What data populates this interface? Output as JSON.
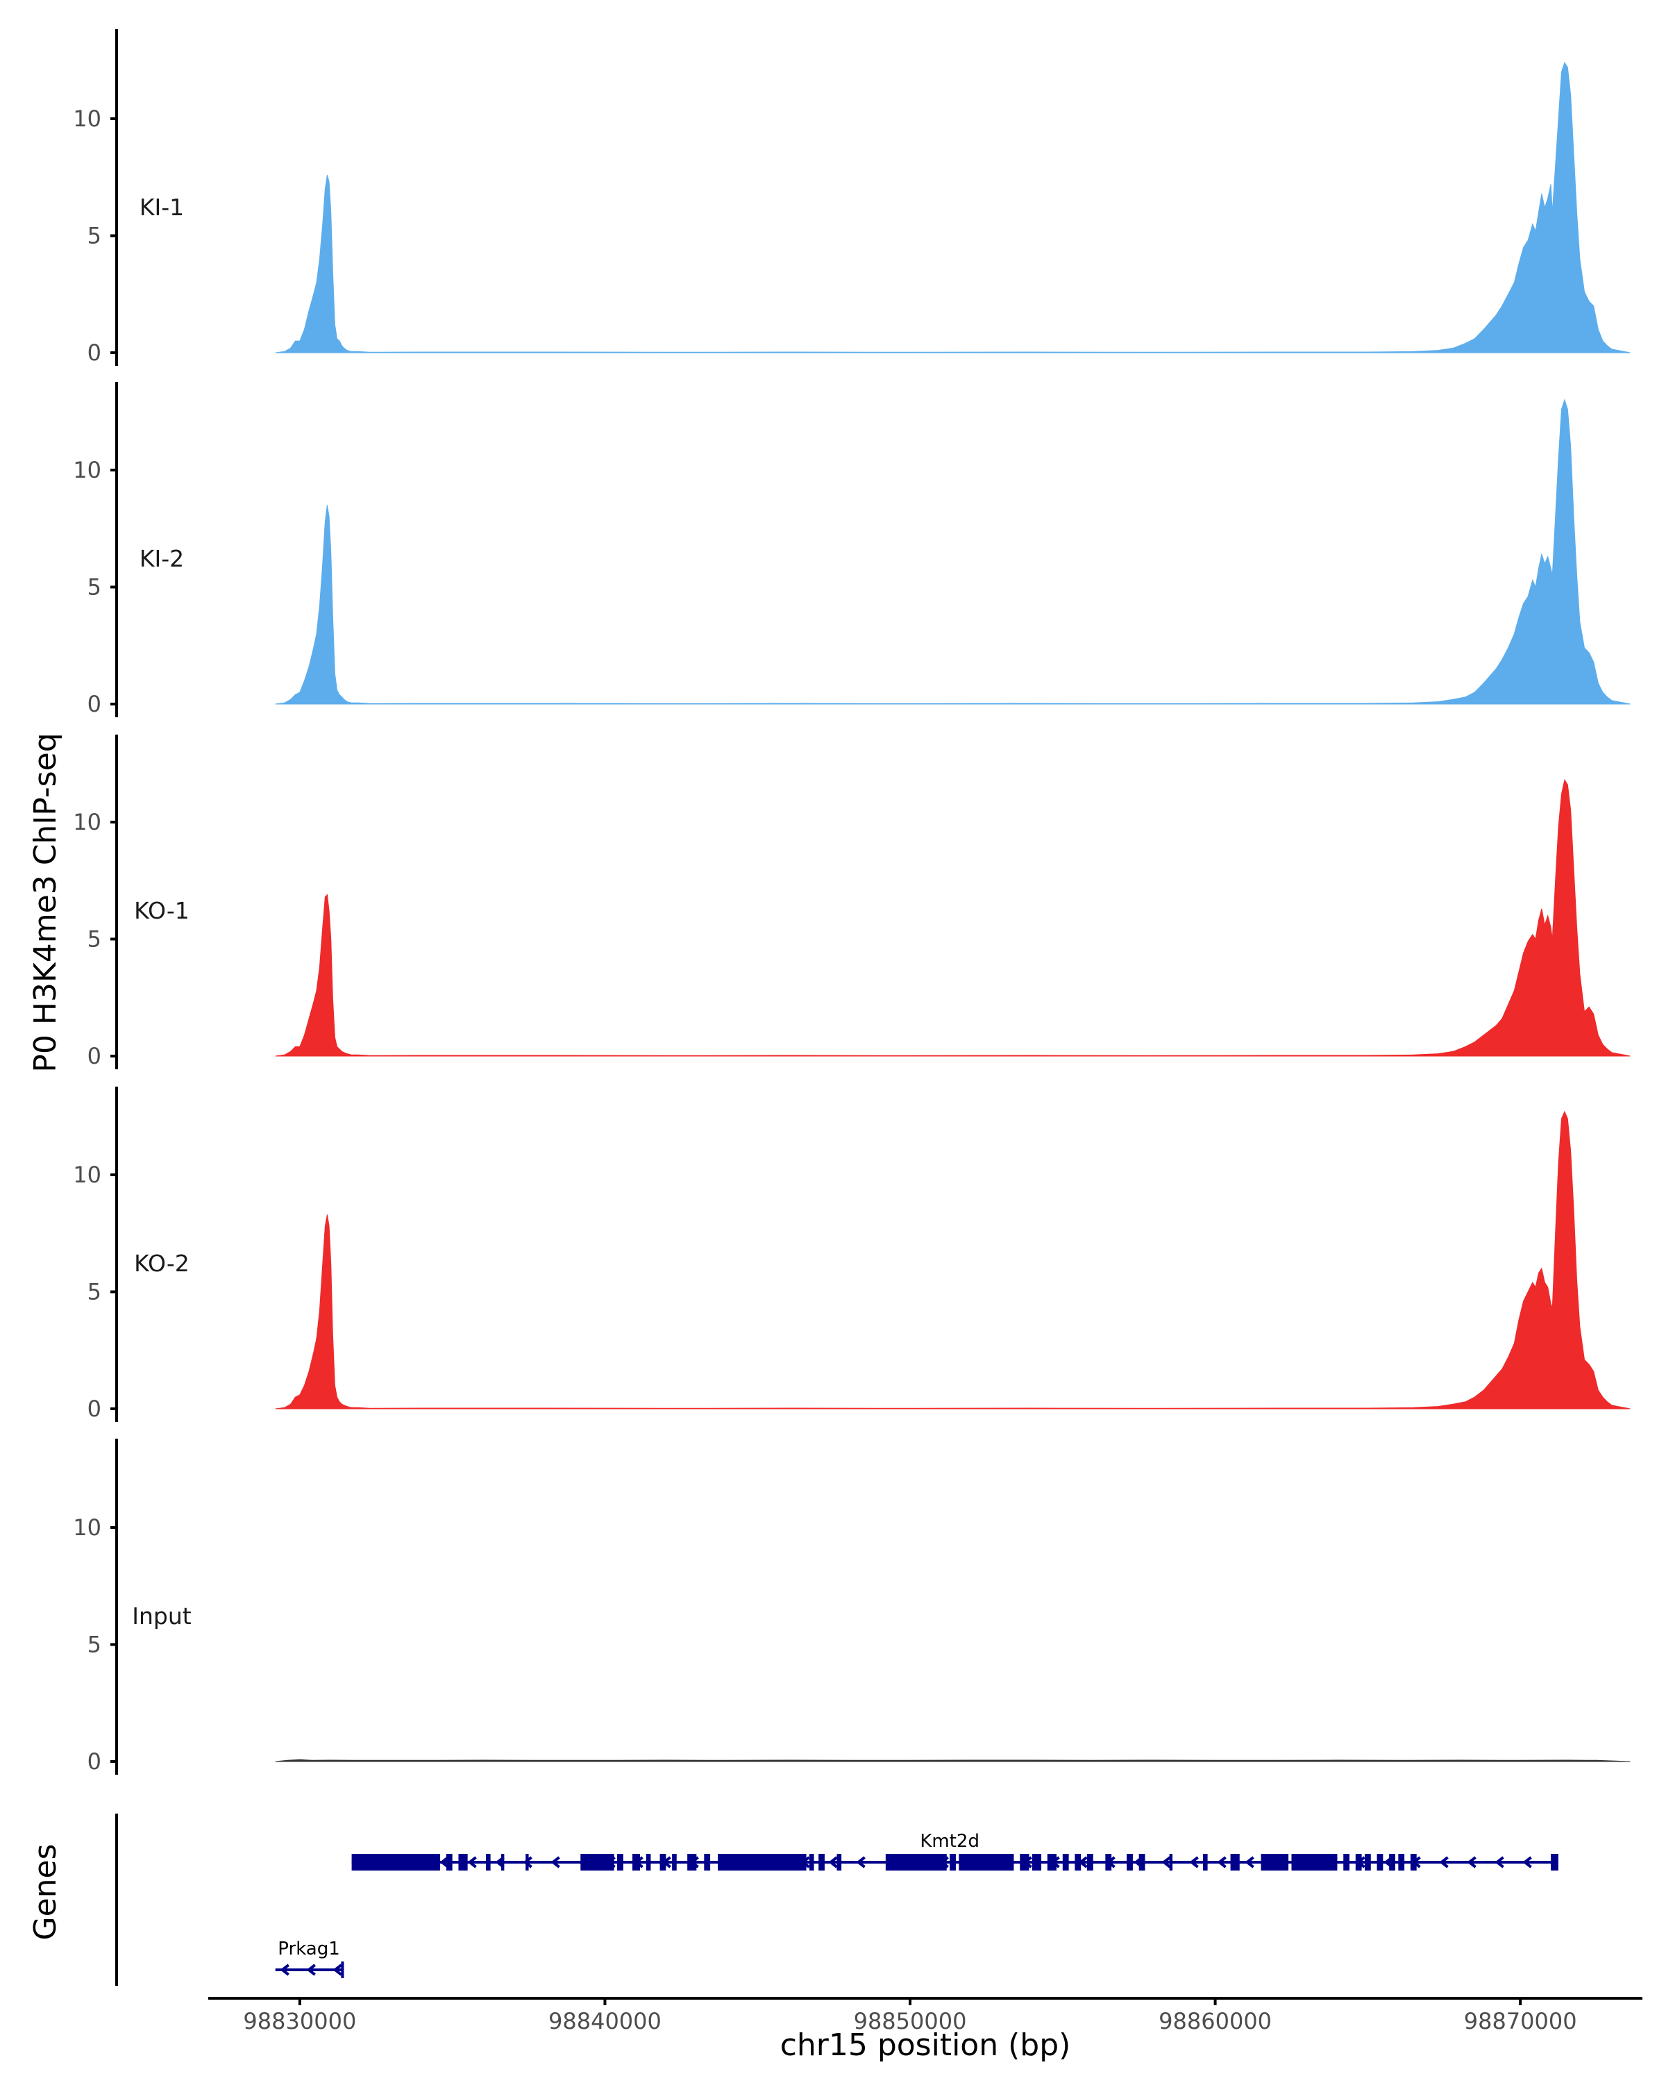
{
  "chart_data": {
    "type": "area",
    "ylabel": "P0 H3K4me3 ChIP-seq",
    "xlabel": "chr15 position (bp)",
    "xlim": [
      98827000,
      98874000
    ],
    "x_ticks": [
      98830000,
      98840000,
      98850000,
      98860000,
      98870000
    ],
    "x_tick_labels": [
      "98830000",
      "98840000",
      "98850000",
      "98860000",
      "98870000"
    ],
    "ylim": [
      0,
      13.5
    ],
    "y_ticks": [
      0,
      5,
      10
    ],
    "y_tick_labels": [
      "0",
      "5",
      "10"
    ],
    "colors": {
      "KI": "#5DADEC",
      "KO": "#EE2A2A",
      "Input": "#333333",
      "gene": "#00008B"
    },
    "tracks": [
      {
        "name": "KI-1",
        "color": "#5DADEC",
        "x": [
          98829200,
          98829500,
          98829700,
          98829850,
          98830000,
          98830150,
          98830300,
          98830450,
          98830550,
          98830650,
          98830750,
          98830830,
          98830900,
          98830960,
          98831020,
          98831080,
          98831150,
          98831220,
          98831300,
          98831380,
          98831450,
          98831550,
          98831700,
          98831900,
          98832300,
          98834000,
          98838000,
          98842000,
          98846000,
          98850000,
          98854000,
          98858000,
          98862000,
          98865000,
          98866500,
          98867300,
          98867800,
          98868200,
          98868500,
          98868800,
          98869000,
          98869200,
          98869400,
          98869600,
          98869800,
          98869950,
          98870100,
          98870250,
          98870400,
          98870500,
          98870600,
          98870700,
          98870800,
          98870900,
          98871000,
          98871050,
          98871150,
          98871250,
          98871350,
          98871450,
          98871550,
          98871650,
          98871750,
          98871850,
          98871950,
          98872100,
          98872250,
          98872400,
          98872550,
          98872700,
          98872850,
          98873000,
          98873200,
          98873400,
          98873600
        ],
        "y": [
          0,
          0.05,
          0.2,
          0.5,
          0.5,
          1.0,
          1.8,
          2.5,
          3.0,
          4.0,
          5.5,
          7.0,
          7.6,
          7.3,
          6.0,
          3.5,
          1.2,
          0.6,
          0.5,
          0.3,
          0.2,
          0.1,
          0.05,
          0.05,
          0.02,
          0.03,
          0.03,
          0.02,
          0.03,
          0.02,
          0.03,
          0.02,
          0.03,
          0.03,
          0.05,
          0.1,
          0.2,
          0.4,
          0.6,
          1.0,
          1.3,
          1.6,
          2.0,
          2.5,
          3.0,
          3.8,
          4.5,
          4.8,
          5.5,
          5.2,
          6.0,
          6.8,
          6.2,
          6.6,
          7.2,
          6.0,
          8.0,
          10.0,
          12.0,
          12.4,
          12.2,
          11.0,
          8.5,
          6.0,
          4.0,
          2.6,
          2.2,
          2.0,
          1.0,
          0.5,
          0.3,
          0.15,
          0.1,
          0.05,
          0
        ]
      },
      {
        "name": "KI-2",
        "color": "#5DADEC",
        "x": [
          98829200,
          98829500,
          98829700,
          98829850,
          98830000,
          98830150,
          98830300,
          98830450,
          98830550,
          98830650,
          98830750,
          98830830,
          98830900,
          98830960,
          98831020,
          98831080,
          98831150,
          98831220,
          98831300,
          98831380,
          98831450,
          98831550,
          98831700,
          98831900,
          98832300,
          98834000,
          98838000,
          98842000,
          98846000,
          98850000,
          98854000,
          98858000,
          98862000,
          98865000,
          98866500,
          98867300,
          98867800,
          98868200,
          98868500,
          98868800,
          98869000,
          98869200,
          98869400,
          98869600,
          98869800,
          98869950,
          98870100,
          98870250,
          98870400,
          98870500,
          98870600,
          98870700,
          98870800,
          98870900,
          98871000,
          98871050,
          98871150,
          98871250,
          98871350,
          98871450,
          98871550,
          98871650,
          98871750,
          98871850,
          98871950,
          98872100,
          98872250,
          98872400,
          98872550,
          98872700,
          98872850,
          98873000,
          98873200,
          98873400,
          98873600
        ],
        "y": [
          0,
          0.05,
          0.2,
          0.4,
          0.5,
          1.0,
          1.6,
          2.4,
          3.0,
          4.2,
          6.0,
          7.8,
          8.5,
          8.0,
          6.5,
          3.8,
          1.3,
          0.6,
          0.4,
          0.3,
          0.2,
          0.1,
          0.05,
          0.05,
          0.02,
          0.03,
          0.03,
          0.02,
          0.03,
          0.02,
          0.03,
          0.02,
          0.03,
          0.03,
          0.05,
          0.1,
          0.2,
          0.3,
          0.5,
          0.9,
          1.2,
          1.5,
          1.9,
          2.4,
          3.0,
          3.7,
          4.3,
          4.6,
          5.3,
          5.0,
          5.8,
          6.4,
          6.0,
          6.3,
          5.8,
          5.5,
          8.0,
          10.5,
          12.6,
          13.0,
          12.6,
          11.0,
          8.0,
          5.5,
          3.5,
          2.4,
          2.2,
          1.8,
          0.9,
          0.5,
          0.3,
          0.15,
          0.1,
          0.05,
          0
        ]
      },
      {
        "name": "KO-1",
        "color": "#EE2A2A",
        "x": [
          98829200,
          98829500,
          98829700,
          98829850,
          98830000,
          98830150,
          98830300,
          98830450,
          98830550,
          98830650,
          98830750,
          98830830,
          98830900,
          98830960,
          98831020,
          98831080,
          98831150,
          98831220,
          98831300,
          98831380,
          98831450,
          98831550,
          98831700,
          98831900,
          98832300,
          98834000,
          98838000,
          98842000,
          98846000,
          98850000,
          98854000,
          98858000,
          98862000,
          98865000,
          98866500,
          98867300,
          98867800,
          98868200,
          98868500,
          98868800,
          98869000,
          98869200,
          98869400,
          98869600,
          98869800,
          98869950,
          98870100,
          98870250,
          98870400,
          98870500,
          98870600,
          98870700,
          98870800,
          98870900,
          98871000,
          98871050,
          98871150,
          98871250,
          98871350,
          98871450,
          98871550,
          98871650,
          98871750,
          98871850,
          98871950,
          98872100,
          98872250,
          98872400,
          98872550,
          98872700,
          98872850,
          98873000,
          98873200,
          98873400,
          98873600
        ],
        "y": [
          0,
          0.05,
          0.2,
          0.4,
          0.4,
          0.9,
          1.6,
          2.3,
          2.8,
          3.8,
          5.5,
          6.8,
          6.9,
          6.2,
          5.0,
          2.5,
          0.8,
          0.4,
          0.3,
          0.2,
          0.15,
          0.1,
          0.05,
          0.05,
          0.02,
          0.03,
          0.03,
          0.02,
          0.03,
          0.02,
          0.03,
          0.02,
          0.03,
          0.03,
          0.05,
          0.1,
          0.2,
          0.4,
          0.6,
          0.9,
          1.1,
          1.3,
          1.6,
          2.2,
          2.8,
          3.6,
          4.4,
          4.9,
          5.2,
          5.0,
          5.8,
          6.3,
          5.6,
          6.0,
          5.5,
          5.0,
          7.5,
          9.8,
          11.2,
          11.8,
          11.6,
          10.5,
          8.0,
          5.5,
          3.5,
          1.9,
          2.1,
          1.8,
          0.9,
          0.5,
          0.3,
          0.15,
          0.1,
          0.05,
          0
        ]
      },
      {
        "name": "KO-2",
        "color": "#EE2A2A",
        "x": [
          98829200,
          98829500,
          98829700,
          98829850,
          98830000,
          98830150,
          98830300,
          98830450,
          98830550,
          98830650,
          98830750,
          98830830,
          98830900,
          98830960,
          98831020,
          98831080,
          98831150,
          98831220,
          98831300,
          98831380,
          98831450,
          98831550,
          98831700,
          98831900,
          98832300,
          98834000,
          98838000,
          98842000,
          98846000,
          98850000,
          98854000,
          98858000,
          98862000,
          98865000,
          98866500,
          98867300,
          98867800,
          98868200,
          98868500,
          98868800,
          98869000,
          98869200,
          98869400,
          98869600,
          98869800,
          98869950,
          98870100,
          98870250,
          98870400,
          98870500,
          98870600,
          98870700,
          98870800,
          98870900,
          98871000,
          98871050,
          98871150,
          98871250,
          98871350,
          98871450,
          98871550,
          98871650,
          98871750,
          98871850,
          98871950,
          98872100,
          98872250,
          98872400,
          98872550,
          98872700,
          98872850,
          98873000,
          98873200,
          98873400,
          98873600
        ],
        "y": [
          0,
          0.05,
          0.2,
          0.5,
          0.6,
          1.0,
          1.6,
          2.4,
          3.0,
          4.2,
          6.2,
          7.8,
          8.3,
          7.8,
          6.2,
          3.2,
          1.0,
          0.5,
          0.3,
          0.2,
          0.15,
          0.1,
          0.05,
          0.05,
          0.02,
          0.03,
          0.03,
          0.02,
          0.03,
          0.02,
          0.03,
          0.02,
          0.03,
          0.03,
          0.05,
          0.1,
          0.2,
          0.3,
          0.5,
          0.8,
          1.1,
          1.4,
          1.7,
          2.2,
          2.8,
          3.8,
          4.6,
          5.0,
          5.4,
          5.2,
          5.8,
          6.0,
          5.4,
          5.2,
          4.5,
          4.3,
          7.5,
          10.5,
          12.4,
          12.7,
          12.4,
          11.0,
          8.5,
          5.5,
          3.5,
          2.1,
          1.9,
          1.6,
          0.8,
          0.5,
          0.3,
          0.15,
          0.1,
          0.05,
          0
        ]
      },
      {
        "name": "Input",
        "color": "#333333",
        "x": [
          98829200,
          98829600,
          98830000,
          98830400,
          98831000,
          98832000,
          98834000,
          98836000,
          98838000,
          98840000,
          98842000,
          98844000,
          98846000,
          98848000,
          98850000,
          98852000,
          98854000,
          98856000,
          98858000,
          98860000,
          98862000,
          98864000,
          98866000,
          98868000,
          98870000,
          98871500,
          98872500,
          98873600
        ],
        "y": [
          0,
          0.05,
          0.08,
          0.05,
          0.06,
          0.05,
          0.05,
          0.06,
          0.05,
          0.05,
          0.06,
          0.05,
          0.06,
          0.05,
          0.05,
          0.06,
          0.06,
          0.05,
          0.06,
          0.05,
          0.05,
          0.06,
          0.05,
          0.06,
          0.05,
          0.06,
          0.05,
          0
        ]
      }
    ],
    "genes": [
      {
        "name": "Kmt2d",
        "strand": "-",
        "start": 98831700,
        "end": 98871200,
        "exons": [
          [
            98831700,
            98834600
          ],
          [
            98834800,
            98835000
          ],
          [
            98835200,
            98835500
          ],
          [
            98836100,
            98836250
          ],
          [
            98836600,
            98836700
          ],
          [
            98837400,
            98837500
          ],
          [
            98839200,
            98840300
          ],
          [
            98840400,
            98840600
          ],
          [
            98840900,
            98841150
          ],
          [
            98841350,
            98841500
          ],
          [
            98841800,
            98842000
          ],
          [
            98842200,
            98842350
          ],
          [
            98842700,
            98843000
          ],
          [
            98843250,
            98843450
          ],
          [
            98843700,
            98846600
          ],
          [
            98846700,
            98846850
          ],
          [
            98847000,
            98847200
          ],
          [
            98847600,
            98847750
          ],
          [
            98849200,
            98851200
          ],
          [
            98851300,
            98851500
          ],
          [
            98851600,
            98853400
          ],
          [
            98853600,
            98853900
          ],
          [
            98854000,
            98854300
          ],
          [
            98854500,
            98854800
          ],
          [
            98855000,
            98855200
          ],
          [
            98855400,
            98855600
          ],
          [
            98855800,
            98856000
          ],
          [
            98856400,
            98856600
          ],
          [
            98857100,
            98857300
          ],
          [
            98857500,
            98857700
          ],
          [
            98858500,
            98858600
          ],
          [
            98859600,
            98859750
          ],
          [
            98860500,
            98860800
          ],
          [
            98861500,
            98862400
          ],
          [
            98862500,
            98864000
          ],
          [
            98864200,
            98864400
          ],
          [
            98864600,
            98864800
          ],
          [
            98864900,
            98865100
          ],
          [
            98865300,
            98865500
          ],
          [
            98865700,
            98865900
          ],
          [
            98866000,
            98866200
          ],
          [
            98866400,
            98866600
          ],
          [
            98871000,
            98871200
          ]
        ]
      },
      {
        "name": "Prkag1",
        "strand": "-",
        "start": 98829200,
        "end": 98831400,
        "exons": []
      }
    ],
    "gene_track_label": "Genes"
  }
}
